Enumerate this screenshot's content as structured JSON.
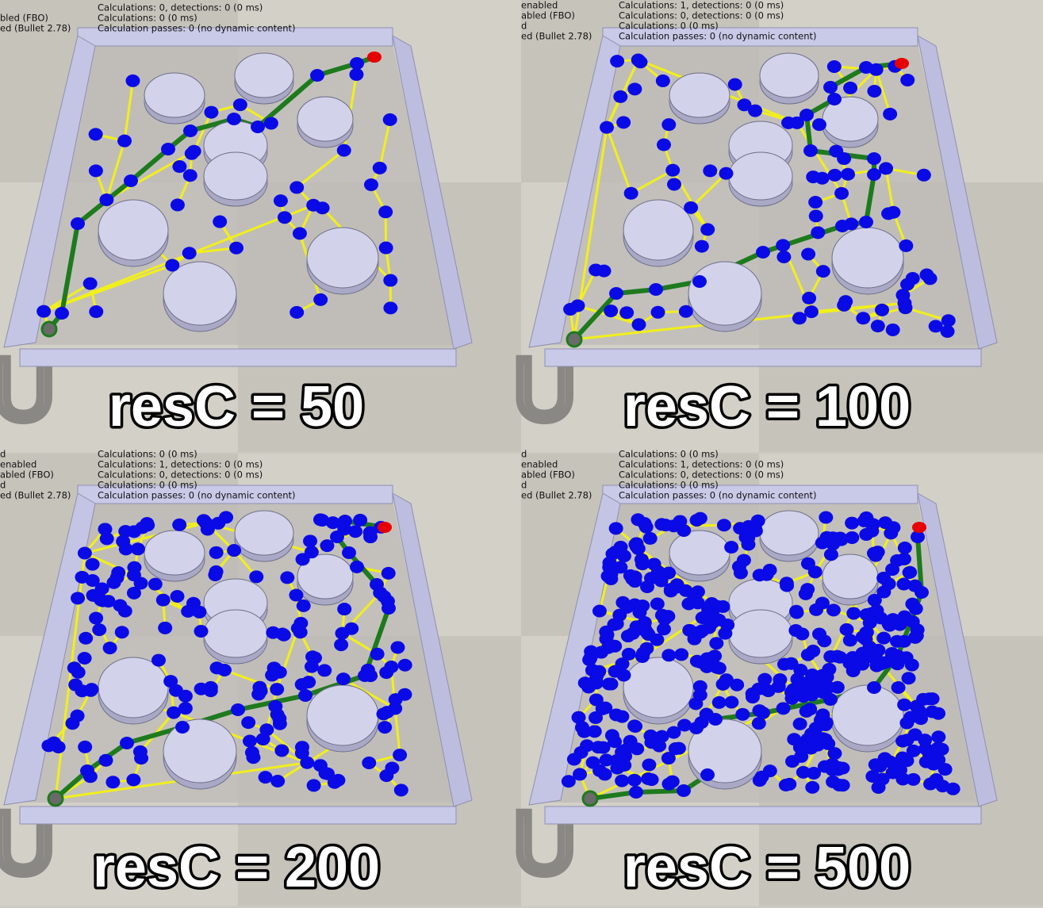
{
  "watermark": "U",
  "panels": [
    {
      "label": "resC = 50",
      "status_left": [
        "bled (FBO)",
        "ed (Bullet 2.78)"
      ],
      "status_right": [
        "Calculations: 0, detections: 0 (0 ms)",
        "Calculations: 0 (0 ms)",
        "Calculation passes: 0 (no dynamic content)"
      ]
    },
    {
      "label": "resC = 100",
      "status_left": [
        "enabled",
        "abled (FBO)",
        "d",
        "ed (Bullet 2.78)"
      ],
      "status_right": [
        "Calculations: 1, detections: 0 (0 ms)",
        "Calculations: 0, detections: 0 (0 ms)",
        "Calculations: 0 (0 ms)",
        "Calculation passes: 0 (no dynamic content)"
      ]
    },
    {
      "label": "resC = 200",
      "status_left": [
        "d",
        "enabled",
        "abled (FBO)",
        "d",
        "ed (Bullet 2.78)"
      ],
      "status_right": [
        "Calculations: 0 (0 ms)",
        "Calculations: 1, detections: 0 (0 ms)",
        "Calculations: 0, detections: 0 (0 ms)",
        "Calculations: 0 (0 ms)",
        "Calculation passes: 0 (no dynamic content)"
      ]
    },
    {
      "label": "resC = 500",
      "status_left": [
        "d",
        "enabled",
        "abled (FBO)",
        "d",
        "ed (Bullet 2.78)"
      ],
      "status_right": [
        "Calculations: 0 (0 ms)",
        "Calculations: 1, detections: 0 (0 ms)",
        "Calculations: 0, detections: 0 (0 ms)",
        "Calculations: 0 (0 ms)",
        "Calculation passes: 0 (no dynamic content)"
      ]
    }
  ]
}
